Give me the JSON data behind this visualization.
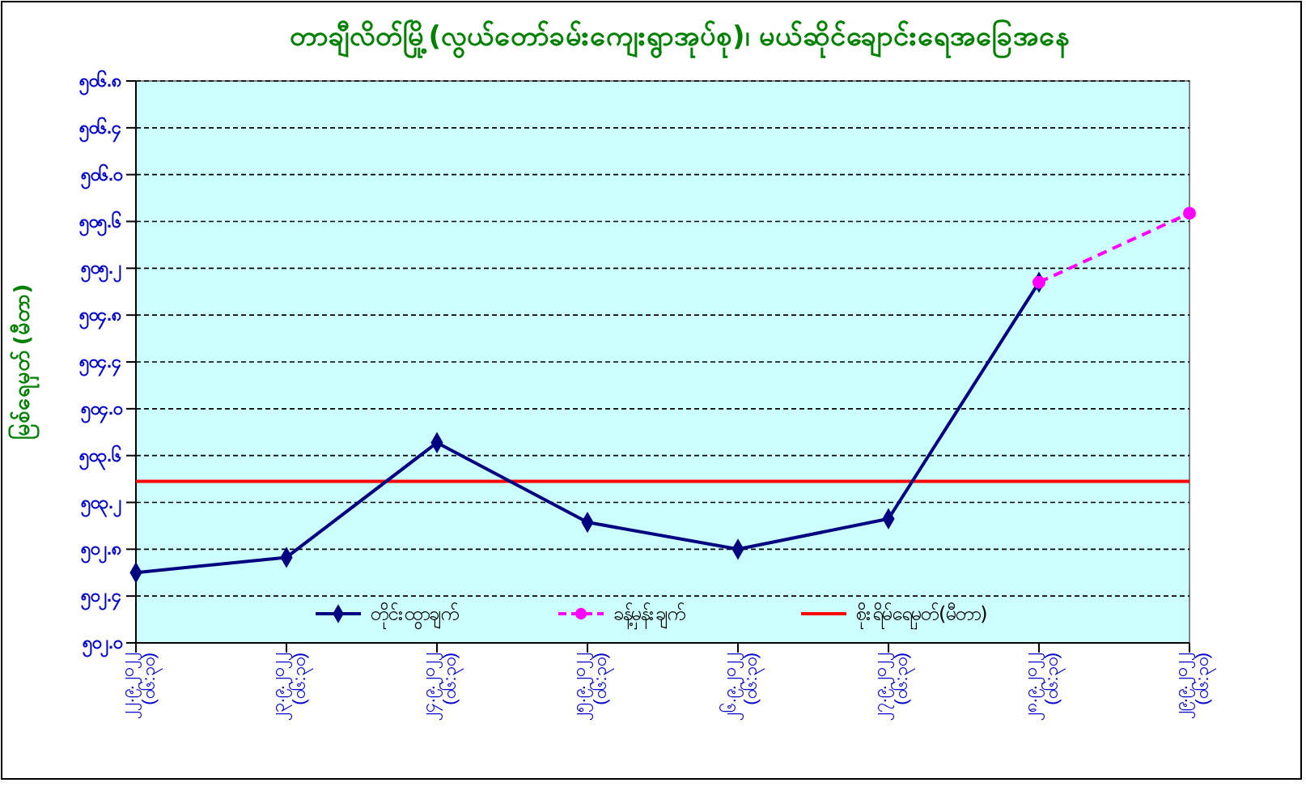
{
  "chart_data": {
    "type": "line",
    "title": "တာချီလိတ်မြို့(လွယ်တော်ခမ်းကျေးရွာအုပ်စု)၊ မယ်ဆိုင်ချောင်းရေအခြေအနေ",
    "ylabel": "မြစ်ရေမှတ် (မီတာ)",
    "categories": [
      "၂၂.၉.၂၀၂၂ (၀၆:၃၀)",
      "၂၃.၉.၂၀၂၂ (၀၆:၃၀)",
      "၂၄.၉.၂၀၂၂ (၀၆:၃၀)",
      "၂၅.၉.၂၀၂၂ (၀၆:၃၀)",
      "၂၆.၉.၂၀၂၂ (၀၆:၃၀)",
      "၂၇.၉.၂၀၂၂ (၀၆:၃၀)",
      "၂၈.၉.၂၀၂၂ (၀၆:၃၀)",
      "၂၉.၉.၂၀၂၂ (၀၆:၃၀)"
    ],
    "series": [
      {
        "name": "တိုင်းထွာချက်",
        "color": "#000080",
        "marker": "diamond",
        "line_style": "solid",
        "values": [
          502.6,
          502.73,
          503.71,
          503.03,
          502.8,
          503.06,
          505.08,
          null
        ]
      },
      {
        "name": "ခန့်မှန်းချက်",
        "color": "#ff00ff",
        "marker": "circle",
        "line_style": "dashed",
        "values": [
          null,
          null,
          null,
          null,
          null,
          null,
          505.08,
          505.67
        ]
      }
    ],
    "ref_lines": [
      {
        "axis": "y",
        "value": 503.38,
        "label": "စိုးရိမ်ရေမှတ်(မီတာ)",
        "color": "#ff0000"
      }
    ],
    "ylim": [
      502.0,
      506.8
    ],
    "yticks": [
      {
        "value": 502.0,
        "label": "၅၀၂.၀"
      },
      {
        "value": 502.4,
        "label": "၅၀၂.၄"
      },
      {
        "value": 502.8,
        "label": "၅၀၂.၈"
      },
      {
        "value": 503.2,
        "label": "၅၀၃.၂"
      },
      {
        "value": 503.6,
        "label": "၅၀၃.၆"
      },
      {
        "value": 504.0,
        "label": "၅၀၄.၀"
      },
      {
        "value": 504.4,
        "label": "၅၀၄.၄"
      },
      {
        "value": 504.8,
        "label": "၅၀၄.၈"
      },
      {
        "value": 505.2,
        "label": "၅၀၅.၂"
      },
      {
        "value": 505.6,
        "label": "၅၀၅.၆"
      },
      {
        "value": 506.0,
        "label": "၅၀၆.၀"
      },
      {
        "value": 506.4,
        "label": "၅၀၆.၄"
      },
      {
        "value": 506.8,
        "label": "၅၀၆.၈"
      }
    ],
    "grid": "y",
    "legend": "bottom"
  }
}
